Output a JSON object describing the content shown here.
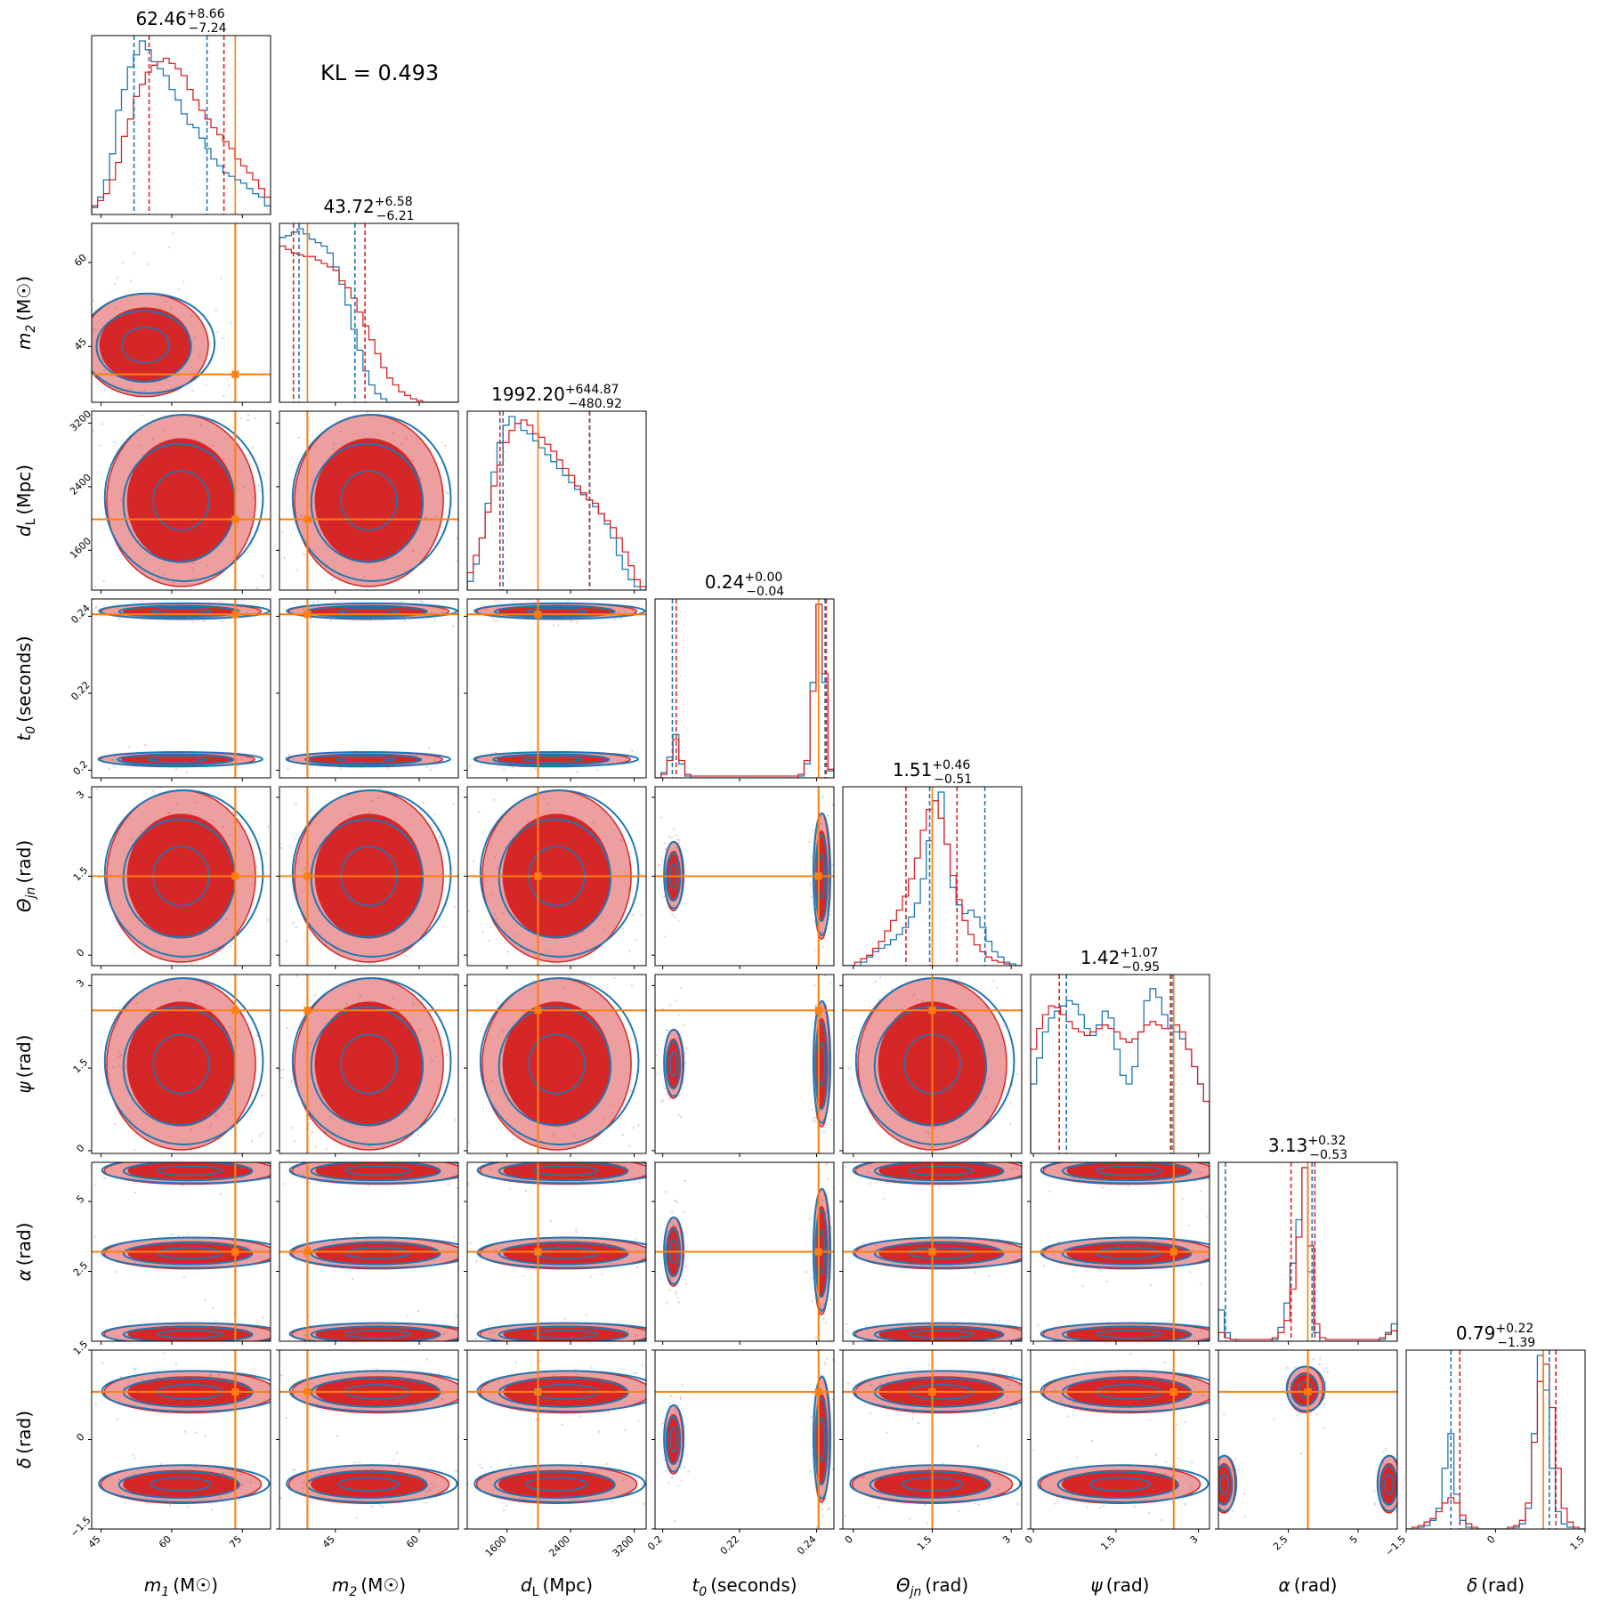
{
  "chart_data": {
    "type": "scatter",
    "kl_label": "KL = 0.493",
    "series_colors": {
      "blue": "#1f77b4",
      "red": "#d62728",
      "truth": "#ff7f0e"
    },
    "parameters": [
      {
        "key": "m1",
        "label_main": "m",
        "label_sub": "1",
        "label_unit": "(M☉)",
        "range": [
          43,
          81
        ],
        "ticks": [
          45,
          60,
          75
        ],
        "truth": 73.5,
        "title_main": "62.46",
        "title_plus": "+8.66",
        "title_minus": "−7.24",
        "quantiles_red": [
          55.2,
          62.46,
          71.1
        ],
        "quantiles_blue": [
          52.0,
          59.0,
          67.5
        ],
        "hist_red": [
          0.05,
          0.08,
          0.12,
          0.2,
          0.3,
          0.45,
          0.55,
          0.68,
          0.75,
          0.82,
          0.86,
          0.88,
          0.9,
          0.87,
          0.84,
          0.8,
          0.72,
          0.66,
          0.6,
          0.55,
          0.5,
          0.46,
          0.42,
          0.38,
          0.32,
          0.28,
          0.24,
          0.2,
          0.15,
          0.1
        ],
        "hist_blue": [
          0.04,
          0.1,
          0.2,
          0.35,
          0.6,
          0.72,
          0.85,
          0.92,
          1.0,
          0.95,
          0.88,
          0.84,
          0.8,
          0.72,
          0.66,
          0.58,
          0.52,
          0.5,
          0.44,
          0.38,
          0.32,
          0.28,
          0.24,
          0.22,
          0.2,
          0.18,
          0.15,
          0.12,
          0.1,
          0.05
        ]
      },
      {
        "key": "m2",
        "label_main": "m",
        "label_sub": "2",
        "label_unit": "(M☉)",
        "range": [
          35,
          67
        ],
        "ticks": [
          45,
          60
        ],
        "truth": 40.0,
        "title_main": "43.72",
        "title_plus": "+6.58",
        "title_minus": "−6.21",
        "quantiles_red": [
          37.5,
          43.72,
          50.3
        ],
        "quantiles_blue": [
          38.5,
          43.0,
          48.5
        ],
        "hist_red": [
          0.9,
          0.88,
          0.86,
          0.85,
          0.84,
          0.84,
          0.82,
          0.8,
          0.78,
          0.76,
          0.7,
          0.66,
          0.6,
          0.52,
          0.44,
          0.36,
          0.28,
          0.2,
          0.14,
          0.1,
          0.06,
          0.04,
          0.02,
          0.01,
          0.0,
          0.0,
          0.0,
          0.0,
          0.0,
          0.0
        ],
        "hist_blue": [
          0.95,
          0.96,
          0.98,
          1.0,
          0.97,
          0.94,
          0.92,
          0.9,
          0.86,
          0.78,
          0.68,
          0.56,
          0.42,
          0.3,
          0.18,
          0.1,
          0.05,
          0.02,
          0.0,
          0.0,
          0.0,
          0.0,
          0.0,
          0.0,
          0.0,
          0.0,
          0.0,
          0.0,
          0.0,
          0.0
        ]
      },
      {
        "key": "dL",
        "label_main": "d",
        "label_sub": "L",
        "label_unit": "(Mpc)",
        "range": [
          1100,
          3350
        ],
        "ticks": [
          1600,
          2400,
          3200
        ],
        "truth": 1990,
        "title_main": "1992.20",
        "title_plus": "+644.87",
        "title_minus": "−480.92",
        "quantiles_red": [
          1511.3,
          1992.2,
          2637.1
        ],
        "quantiles_blue": [
          1550.0,
          1990.0,
          2640.0
        ],
        "hist_red": [
          0.1,
          0.2,
          0.3,
          0.45,
          0.6,
          0.72,
          0.85,
          0.92,
          0.96,
          0.98,
          0.95,
          0.9,
          0.88,
          0.84,
          0.8,
          0.75,
          0.7,
          0.66,
          0.6,
          0.56,
          0.52,
          0.5,
          0.44,
          0.4,
          0.36,
          0.3,
          0.22,
          0.14,
          0.06,
          0.02
        ],
        "hist_blue": [
          0.05,
          0.15,
          0.3,
          0.5,
          0.68,
          0.85,
          0.95,
          1.0,
          0.96,
          0.92,
          0.9,
          0.86,
          0.82,
          0.78,
          0.74,
          0.7,
          0.66,
          0.62,
          0.58,
          0.55,
          0.52,
          0.48,
          0.44,
          0.38,
          0.3,
          0.2,
          0.12,
          0.06,
          0.02,
          0.0
        ]
      },
      {
        "key": "t0",
        "label_main": "t",
        "label_sub": "0",
        "label_unit": "(seconds)",
        "range": [
          0.198,
          0.2445
        ],
        "ticks": [
          0.2,
          0.22,
          0.24
        ],
        "truth": 0.2405,
        "title_main": "0.24",
        "title_plus": "+0.00",
        "title_minus": "−0.04",
        "quantiles_red": [
          0.2035,
          0.242,
          0.2425
        ],
        "quantiles_blue": [
          0.2025,
          0.2418,
          0.2422
        ],
        "hist_red": [
          0.0,
          0.02,
          0.1,
          0.22,
          0.1,
          0.02,
          0.01,
          0.01,
          0.01,
          0.01,
          0.01,
          0.01,
          0.01,
          0.01,
          0.01,
          0.01,
          0.01,
          0.01,
          0.01,
          0.01,
          0.01,
          0.01,
          0.01,
          0.01,
          0.02,
          0.1,
          0.5,
          1.0,
          0.6,
          0.05
        ],
        "hist_blue": [
          0.0,
          0.03,
          0.12,
          0.25,
          0.08,
          0.01,
          0.0,
          0.0,
          0.0,
          0.0,
          0.0,
          0.0,
          0.0,
          0.0,
          0.0,
          0.0,
          0.0,
          0.0,
          0.0,
          0.0,
          0.0,
          0.0,
          0.0,
          0.0,
          0.01,
          0.08,
          0.55,
          1.0,
          0.55,
          0.04
        ]
      },
      {
        "key": "theta",
        "label_main": "Θ",
        "label_sub": "jn",
        "label_unit": "(rad)",
        "range": [
          -0.2,
          3.2
        ],
        "ticks": [
          0.0,
          1.5,
          3.0
        ],
        "truth": 1.5,
        "title_main": "1.51",
        "title_plus": "+0.46",
        "title_minus": "−0.51",
        "quantiles_red": [
          1.0,
          1.51,
          1.97
        ],
        "quantiles_blue": [
          1.45,
          1.6,
          2.5
        ],
        "hist_red": [
          0.0,
          0.0,
          0.02,
          0.04,
          0.06,
          0.1,
          0.14,
          0.2,
          0.26,
          0.32,
          0.4,
          0.5,
          0.62,
          0.78,
          0.9,
          0.95,
          0.85,
          0.7,
          0.52,
          0.38,
          0.26,
          0.18,
          0.12,
          0.08,
          0.05,
          0.03,
          0.02,
          0.01,
          0.0,
          0.0
        ],
        "hist_blue": [
          0.0,
          0.0,
          0.0,
          0.02,
          0.05,
          0.08,
          0.1,
          0.12,
          0.15,
          0.18,
          0.22,
          0.28,
          0.36,
          0.5,
          0.72,
          0.95,
          1.0,
          0.7,
          0.45,
          0.35,
          0.3,
          0.32,
          0.28,
          0.22,
          0.14,
          0.08,
          0.05,
          0.02,
          0.01,
          0.0
        ]
      },
      {
        "key": "psi",
        "label_main": "ψ",
        "label_sub": "",
        "label_unit": "(rad)",
        "range": [
          -0.05,
          3.2
        ],
        "ticks": [
          0.0,
          1.5,
          3.0
        ],
        "truth": 2.55,
        "title_main": "1.42",
        "title_plus": "+1.07",
        "title_minus": "−0.95",
        "quantiles_red": [
          0.47,
          1.42,
          2.49
        ],
        "quantiles_blue": [
          0.6,
          1.42,
          2.52
        ],
        "hist_red": [
          0.6,
          0.72,
          0.8,
          0.85,
          0.84,
          0.8,
          0.76,
          0.72,
          0.7,
          0.68,
          0.7,
          0.72,
          0.74,
          0.72,
          0.7,
          0.66,
          0.64,
          0.66,
          0.7,
          0.74,
          0.76,
          0.74,
          0.72,
          0.72,
          0.74,
          0.7,
          0.6,
          0.5,
          0.4,
          0.3
        ],
        "hist_blue": [
          0.4,
          0.55,
          0.7,
          0.78,
          0.82,
          0.85,
          0.88,
          0.86,
          0.8,
          0.72,
          0.68,
          0.74,
          0.82,
          0.78,
          0.6,
          0.45,
          0.4,
          0.5,
          0.7,
          0.88,
          0.95,
          0.9,
          0.8,
          0.72,
          0.7,
          0.66,
          0.6,
          0.5,
          0.4,
          0.3
        ]
      },
      {
        "key": "alpha",
        "label_main": "α",
        "label_sub": "",
        "label_unit": "(rad)",
        "range": [
          0.0,
          6.4
        ],
        "ticks": [
          2.5,
          5.0
        ],
        "truth": 3.2,
        "title_main": "3.13",
        "title_plus": "+0.32",
        "title_minus": "−0.53",
        "quantiles_red": [
          2.6,
          3.13,
          3.45
        ],
        "quantiles_blue": [
          0.25,
          3.05,
          3.35
        ],
        "hist_red": [
          0.05,
          0.02,
          0.01,
          0.01,
          0.01,
          0.01,
          0.01,
          0.01,
          0.01,
          0.02,
          0.05,
          0.12,
          0.3,
          0.6,
          1.0,
          0.55,
          0.1,
          0.02,
          0.01,
          0.01,
          0.01,
          0.01,
          0.01,
          0.01,
          0.01,
          0.01,
          0.01,
          0.02,
          0.04,
          0.06
        ],
        "hist_blue": [
          0.18,
          0.05,
          0.01,
          0.0,
          0.0,
          0.0,
          0.0,
          0.0,
          0.0,
          0.01,
          0.08,
          0.22,
          0.45,
          0.7,
          1.0,
          0.4,
          0.05,
          0.0,
          0.0,
          0.0,
          0.0,
          0.0,
          0.0,
          0.0,
          0.0,
          0.0,
          0.0,
          0.01,
          0.05,
          0.1
        ]
      },
      {
        "key": "delta",
        "label_main": "δ",
        "label_sub": "",
        "label_unit": "(rad)",
        "range": [
          -1.5,
          1.5
        ],
        "ticks": [
          -1.5,
          0.0,
          1.5
        ],
        "truth": 0.8,
        "title_main": "0.79",
        "title_plus": "+0.22",
        "title_minus": "−1.39",
        "quantiles_red": [
          -0.6,
          0.79,
          1.01
        ],
        "quantiles_blue": [
          -0.75,
          0.7,
          0.9
        ],
        "hist_red": [
          0.0,
          0.01,
          0.02,
          0.04,
          0.06,
          0.1,
          0.15,
          0.18,
          0.15,
          0.08,
          0.03,
          0.01,
          0.0,
          0.0,
          0.0,
          0.0,
          0.0,
          0.01,
          0.02,
          0.05,
          0.15,
          0.5,
          0.85,
          0.95,
          0.7,
          0.35,
          0.12,
          0.04,
          0.01,
          0.0
        ],
        "hist_blue": [
          0.0,
          0.0,
          0.01,
          0.02,
          0.05,
          0.12,
          0.35,
          0.55,
          0.2,
          0.05,
          0.01,
          0.0,
          0.0,
          0.0,
          0.0,
          0.0,
          0.0,
          0.0,
          0.01,
          0.03,
          0.12,
          0.55,
          1.0,
          0.8,
          0.35,
          0.1,
          0.03,
          0.01,
          0.0,
          0.0
        ]
      }
    ]
  }
}
